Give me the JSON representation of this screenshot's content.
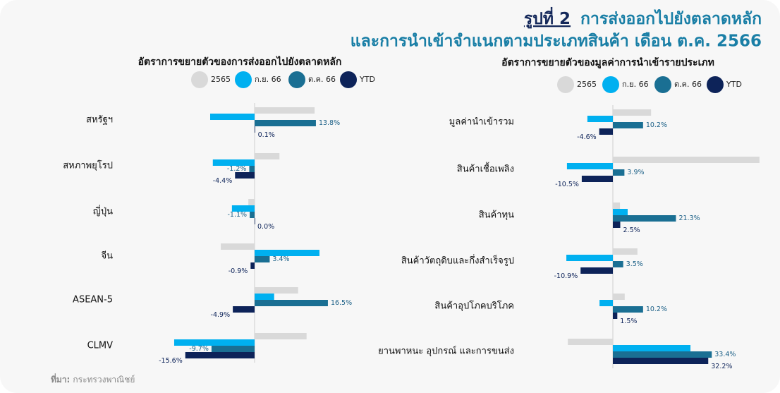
{
  "title": {
    "figure_label": "รูปที่ 2",
    "line1": "การส่งออกไปยังตลาดหลัก",
    "line2": "และการนำเข้าจำแนกตามประเภทสินค้า เดือน ต.ค. 2566"
  },
  "source": {
    "label": "ที่มา:",
    "text": "กระทรวงพาณิชย์"
  },
  "chart_data": [
    {
      "type": "bar",
      "orientation": "horizontal",
      "title": "อัตราการขยายตัวของการส่งออกไปยังตลาดหลัก",
      "categories": [
        "สหรัฐฯ",
        "สหภาพยุโรป",
        "ญี่ปุ่น",
        "จีน",
        "ASEAN-5",
        "CLMV"
      ],
      "series": [
        {
          "name": "2565",
          "color": "#d9d9d9",
          "values": [
            13.5,
            5.6,
            -1.4,
            -7.6,
            9.8,
            11.7
          ]
        },
        {
          "name": "ก.ย. 66",
          "color": "#00b0f0",
          "values": [
            -10.0,
            -9.4,
            -5.1,
            14.6,
            4.4,
            -18.1
          ]
        },
        {
          "name": "ต.ค. 66",
          "color": "#1a6f93",
          "values": [
            13.8,
            -1.2,
            -1.1,
            3.4,
            16.5,
            -9.7
          ],
          "value_labels": [
            "13.8%",
            "-1.2%",
            "-1.1%",
            "3.4%",
            "16.5%",
            "-9.7%"
          ]
        },
        {
          "name": "YTD",
          "color": "#0d2359",
          "values": [
            0.1,
            -4.4,
            0.0,
            -0.9,
            -4.9,
            -15.6
          ],
          "value_labels": [
            "0.1%",
            "-4.4%",
            "0.0%",
            "-0.9%",
            "-4.9%",
            "-15.6%"
          ]
        }
      ]
    },
    {
      "type": "bar",
      "orientation": "horizontal",
      "title": "อัตราการขยายตัวของมูลค่าการนำเข้ารายประเภท",
      "categories": [
        "มูลค่านำเข้ารวม",
        "สินค้าเชื้อเพลิง",
        "สินค้าทุน",
        "สินค้าวัตถุดิบและกึ่งสำเร็จรูป",
        "สินค้าอุปโภคบริโภค",
        "ยานพาหนะ อุปกรณ์ และการขนส่ง"
      ],
      "series": [
        {
          "name": "2565",
          "color": "#d9d9d9",
          "values": [
            12.9,
            49.5,
            2.4,
            8.3,
            4.0,
            -15.2
          ]
        },
        {
          "name": "ก.ย. 66",
          "color": "#00b0f0",
          "values": [
            -8.6,
            -15.5,
            5.0,
            -15.7,
            -4.5,
            26.2
          ]
        },
        {
          "name": "ต.ค. 66",
          "color": "#1a6f93",
          "values": [
            10.2,
            3.9,
            21.3,
            3.5,
            10.2,
            33.4
          ],
          "value_labels": [
            "10.2%",
            "3.9%",
            "21.3%",
            "3.5%",
            "10.2%",
            "33.4%"
          ]
        },
        {
          "name": "YTD",
          "color": "#0d2359",
          "values": [
            -4.6,
            -10.5,
            2.5,
            -10.9,
            1.5,
            32.2
          ],
          "value_labels": [
            "-4.6%",
            "-10.5%",
            "2.5%",
            "-10.9%",
            "1.5%",
            "32.2%"
          ]
        }
      ]
    }
  ]
}
